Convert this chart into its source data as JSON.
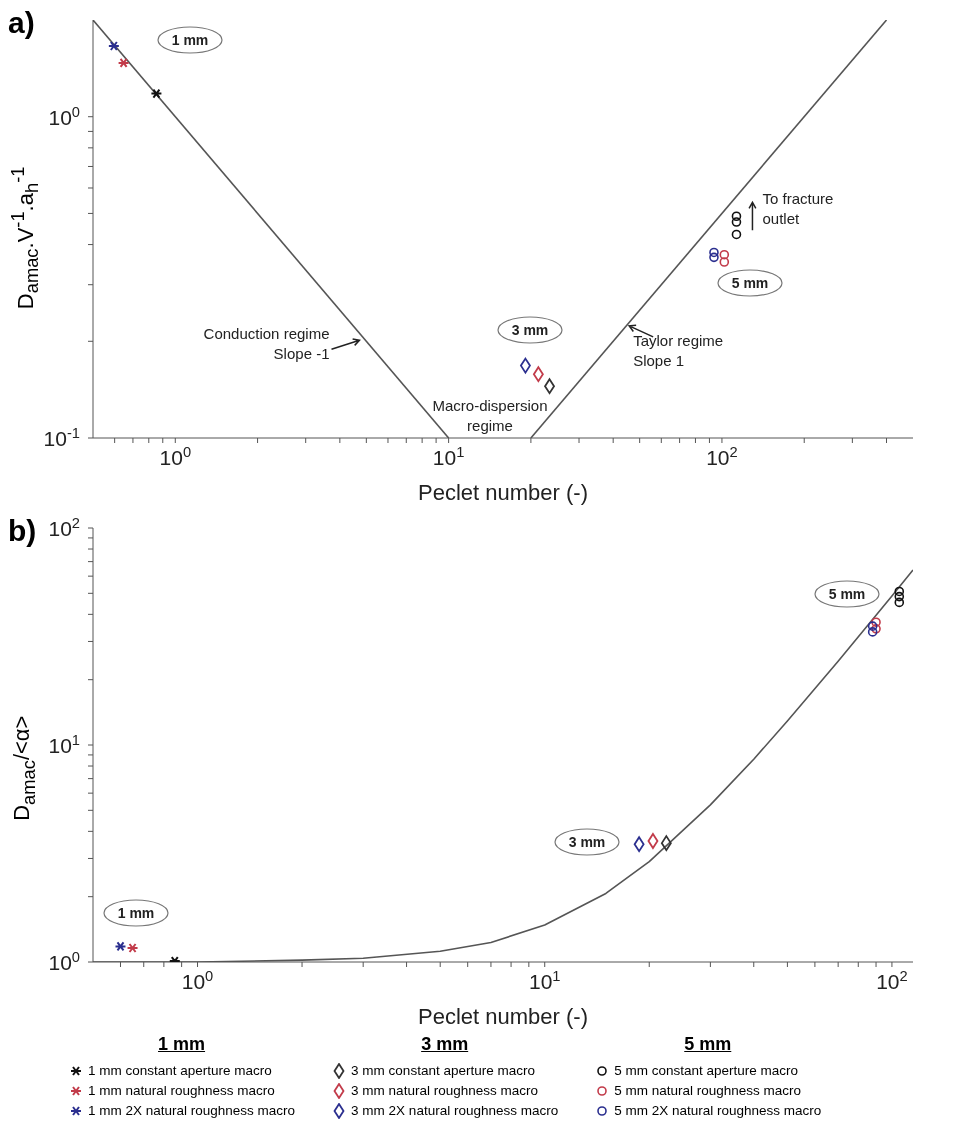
{
  "chart_data": [
    {
      "type": "scatter",
      "title": "a)",
      "xlabel": "Peclet number (-)",
      "ylabel": "D$_{amac}$.V$^{-1}$.a$_{h}$$^{-1}$",
      "log": "xy",
      "xlim": [
        0.5,
        500
      ],
      "ylim": [
        0.1,
        2
      ],
      "xticks": [
        {
          "value": 0.6,
          "label": null
        },
        {
          "value": 0.7,
          "label": null
        },
        {
          "value": 0.8,
          "label": null
        },
        {
          "value": 0.9,
          "label": null
        },
        {
          "value": 1,
          "label": "10$^{0}$"
        },
        {
          "value": 2,
          "label": null
        },
        {
          "value": 3,
          "label": null
        },
        {
          "value": 4,
          "label": null
        },
        {
          "value": 5,
          "label": null
        },
        {
          "value": 6,
          "label": null
        },
        {
          "value": 7,
          "label": null
        },
        {
          "value": 8,
          "label": null
        },
        {
          "value": 9,
          "label": null
        },
        {
          "value": 10,
          "label": "10$^{1}$"
        },
        {
          "value": 20,
          "label": null
        },
        {
          "value": 30,
          "label": null
        },
        {
          "value": 40,
          "label": null
        },
        {
          "value": 50,
          "label": null
        },
        {
          "value": 60,
          "label": null
        },
        {
          "value": 70,
          "label": null
        },
        {
          "value": 80,
          "label": null
        },
        {
          "value": 90,
          "label": null
        },
        {
          "value": 100,
          "label": "10$^{2}$"
        },
        {
          "value": 200,
          "label": null
        },
        {
          "value": 300,
          "label": null
        },
        {
          "value": 400,
          "label": null
        }
      ],
      "yticks": [
        {
          "value": 0.1,
          "label": "10$^{-1}$"
        },
        {
          "value": 0.2,
          "label": null
        },
        {
          "value": 0.3,
          "label": null
        },
        {
          "value": 0.4,
          "label": null
        },
        {
          "value": 0.5,
          "label": null
        },
        {
          "value": 0.6,
          "label": null
        },
        {
          "value": 0.7,
          "label": null
        },
        {
          "value": 0.8,
          "label": null
        },
        {
          "value": 0.9,
          "label": null
        },
        {
          "value": 1,
          "label": "10$^{0}$"
        }
      ],
      "series": [
        {
          "type": "line",
          "color": "#555555",
          "marker": "none",
          "x": [
            0.5,
            10
          ],
          "values": [
            2,
            0.1
          ]
        },
        {
          "type": "line",
          "color": "#555555",
          "marker": "none",
          "x": [
            20,
            400
          ],
          "values": [
            0.1,
            2
          ]
        },
        {
          "color": "#111111",
          "marker": "cross",
          "x": [
            0.853
          ],
          "values": [
            1.18
          ]
        },
        {
          "color": "#c23b4a",
          "marker": "cross",
          "x": [
            0.647
          ],
          "values": [
            1.47
          ]
        },
        {
          "color": "#2b2f8f",
          "marker": "cross",
          "x": [
            0.596
          ],
          "values": [
            1.66
          ]
        },
        {
          "color": "#333333",
          "marker": "diamond",
          "x": [
            23.4
          ],
          "values": [
            0.145
          ]
        },
        {
          "color": "#c23b4a",
          "marker": "diamond",
          "x": [
            21.3
          ],
          "values": [
            0.158
          ]
        },
        {
          "color": "#2b2f8f",
          "marker": "diamond",
          "x": [
            19.1
          ],
          "values": [
            0.168
          ]
        },
        {
          "color": "#111111",
          "marker": "circle",
          "x": [
            113,
            113,
            113
          ],
          "values": [
            0.49,
            0.47,
            0.43
          ]
        },
        {
          "color": "#c23b4a",
          "marker": "circle",
          "x": [
            102,
            102
          ],
          "values": [
            0.372,
            0.353
          ]
        },
        {
          "color": "#2b2f8f",
          "marker": "circle",
          "x": [
            93.5,
            93.5
          ],
          "values": [
            0.378,
            0.365
          ]
        }
      ],
      "annotations": [
        "1 mm",
        "3 mm",
        "5 mm",
        {
          "text": "Conduction regime Slope -1",
          "x": 4.8,
          "y": 0.2
        },
        "Macro-dispersion regime",
        {
          "text": "Taylor regime Slope 1",
          "x": 45,
          "y": 0.225
        },
        {
          "text": "To fracture outlet",
          "x": 113,
          "y": 0.49
        }
      ]
    },
    {
      "type": "scatter",
      "title": "b)",
      "xlabel": "Peclet number (-)",
      "ylabel": "D$_{amac}$/<α>",
      "log": "xy",
      "legend": "bottom",
      "xlim": [
        0.5,
        115
      ],
      "ylim": [
        1,
        100
      ],
      "xticks": [
        {
          "value": 0.6,
          "label": null
        },
        {
          "value": 0.7,
          "label": null
        },
        {
          "value": 0.8,
          "label": null
        },
        {
          "value": 0.9,
          "label": null
        },
        {
          "value": 1,
          "label": "10$^{0}$"
        },
        {
          "value": 2,
          "label": null
        },
        {
          "value": 3,
          "label": null
        },
        {
          "value": 4,
          "label": null
        },
        {
          "value": 5,
          "label": null
        },
        {
          "value": 6,
          "label": null
        },
        {
          "value": 7,
          "label": null
        },
        {
          "value": 8,
          "label": null
        },
        {
          "value": 9,
          "label": null
        },
        {
          "value": 10,
          "label": "10$^{1}$"
        },
        {
          "value": 20,
          "label": null
        },
        {
          "value": 30,
          "label": null
        },
        {
          "value": 40,
          "label": null
        },
        {
          "value": 50,
          "label": null
        },
        {
          "value": 60,
          "label": null
        },
        {
          "value": 70,
          "label": null
        },
        {
          "value": 80,
          "label": null
        },
        {
          "value": 90,
          "label": null
        },
        {
          "value": 100,
          "label": "10$^{2}$"
        }
      ],
      "yticks": [
        {
          "value": 1,
          "label": "10$^{0}$"
        },
        {
          "value": 2,
          "label": null
        },
        {
          "value": 3,
          "label": null
        },
        {
          "value": 4,
          "label": null
        },
        {
          "value": 5,
          "label": null
        },
        {
          "value": 6,
          "label": null
        },
        {
          "value": 7,
          "label": null
        },
        {
          "value": 8,
          "label": null
        },
        {
          "value": 9,
          "label": null
        },
        {
          "value": 10,
          "label": "10$^{1}$"
        },
        {
          "value": 20,
          "label": null
        },
        {
          "value": 30,
          "label": null
        },
        {
          "value": 40,
          "label": null
        },
        {
          "value": 50,
          "label": null
        },
        {
          "value": 60,
          "label": null
        },
        {
          "value": 70,
          "label": null
        },
        {
          "value": 80,
          "label": null
        },
        {
          "value": 90,
          "label": null
        },
        {
          "value": 100,
          "label": "10$^{2}$"
        }
      ],
      "series": [
        {
          "name": "1 mm constant aperture macro",
          "color": "#111111",
          "marker": "cross",
          "x": [
            0.86
          ],
          "values": [
            1.01
          ]
        },
        {
          "name": "1 mm natural roughness macro",
          "color": "#c23b4a",
          "marker": "cross",
          "x": [
            0.65
          ],
          "values": [
            1.16
          ]
        },
        {
          "name": "1 mm 2X natural roughness macro",
          "color": "#2b2f8f",
          "marker": "cross",
          "x": [
            0.6
          ],
          "values": [
            1.18
          ]
        },
        {
          "name": "3 mm constant aperture macro",
          "color": "#333333",
          "marker": "diamond",
          "x": [
            22.4
          ],
          "values": [
            3.53
          ]
        },
        {
          "name": "3 mm natural roughness macro",
          "color": "#c23b4a",
          "marker": "diamond",
          "x": [
            20.5
          ],
          "values": [
            3.61
          ]
        },
        {
          "name": "3 mm 2X natural roughness macro",
          "color": "#2b2f8f",
          "marker": "diamond",
          "x": [
            18.7
          ],
          "values": [
            3.49
          ]
        },
        {
          "name": "5 mm constant aperture macro",
          "color": "#111111",
          "marker": "circle",
          "x": [
            105,
            105,
            105
          ],
          "values": [
            51,
            48.3,
            45.4
          ]
        },
        {
          "name": "5 mm natural roughness macro",
          "color": "#c23b4a",
          "marker": "circle",
          "x": [
            90,
            90
          ],
          "values": [
            36.8,
            34.3
          ]
        },
        {
          "name": "5 mm 2X natural roughness macro",
          "color": "#2b2f8f",
          "marker": "circle",
          "x": [
            88,
            88
          ],
          "values": [
            35.3,
            33.2
          ]
        },
        {
          "type": "line",
          "color": "#555555",
          "marker": "none",
          "x": [
            0.5,
            1,
            2,
            3,
            5,
            7,
            10,
            15,
            20,
            30,
            40,
            50,
            70,
            100,
            115
          ],
          "values": [
            1,
            1,
            1.02,
            1.04,
            1.12,
            1.23,
            1.48,
            2.07,
            2.9,
            5.3,
            8.6,
            12.9,
            24.3,
            48.6,
            64
          ]
        }
      ],
      "annotations": [
        "5 mm",
        "3 mm",
        "1 mm",
        "1 mm",
        "3 mm",
        "5 mm"
      ]
    }
  ]
}
